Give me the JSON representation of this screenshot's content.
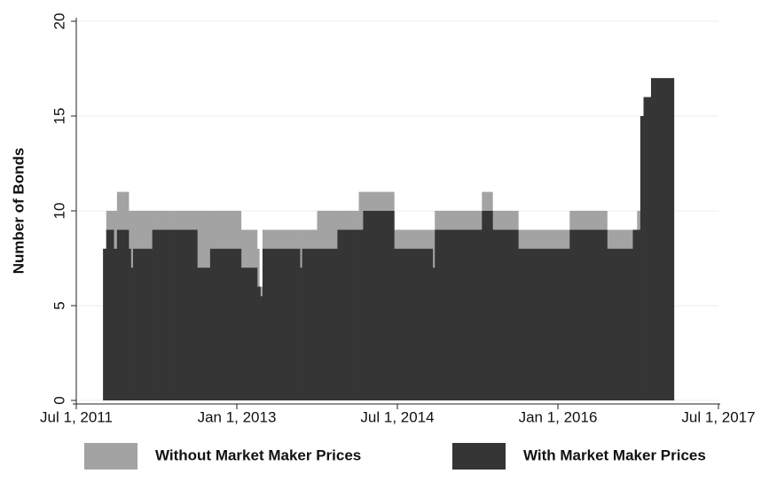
{
  "chart_data": {
    "type": "step-area",
    "y_label": "Number of Bonds",
    "x": [
      2011.75,
      2011.78,
      2011.85,
      2011.88,
      2011.99,
      2012.01,
      2012.03,
      2012.21,
      2012.4,
      2012.63,
      2012.75,
      2013.04,
      2013.19,
      2013.21,
      2013.22,
      2013.24,
      2013.59,
      2013.61,
      2013.75,
      2013.94,
      2014.14,
      2014.18,
      2014.47,
      2014.83,
      2014.85,
      2015.29,
      2015.39,
      2015.63,
      2016.11,
      2016.46,
      2016.7,
      2016.74,
      2016.77,
      2016.8,
      2016.87,
      2017.08
    ],
    "series": [
      {
        "name": "Without Market Maker Prices",
        "color": "#a3a3a3",
        "values": [
          8,
          10,
          10,
          11,
          10,
          10,
          10,
          10,
          10,
          10,
          10,
          9,
          8,
          6,
          6,
          9,
          9,
          9,
          10,
          10,
          11,
          11,
          9,
          9,
          10,
          11,
          10,
          9,
          10,
          9,
          9,
          10,
          15,
          16,
          17,
          17
        ]
      },
      {
        "name": "With Market Maker Prices",
        "color": "#353535",
        "values": [
          8,
          9,
          8,
          9,
          8,
          7,
          8,
          9,
          9,
          7,
          8,
          7,
          6,
          6,
          5.5,
          8,
          7,
          8,
          8,
          9,
          9,
          10,
          8,
          7,
          9,
          10,
          9,
          8,
          9,
          8,
          9,
          9,
          15,
          16,
          17,
          17
        ]
      }
    ],
    "xlim": [
      2011.5,
      2017.5
    ],
    "xticks": [
      {
        "value": 2011.5,
        "label": "Jul 1, 2011"
      },
      {
        "value": 2013,
        "label": "Jan 1, 2013"
      },
      {
        "value": 2014.5,
        "label": "Jul 1, 2014"
      },
      {
        "value": 2016,
        "label": "Jan 1, 2016"
      },
      {
        "value": 2017.5,
        "label": "Jul 1, 2017"
      }
    ],
    "ylim": [
      0,
      20
    ],
    "yticks": [
      0,
      5,
      10,
      15,
      20
    ],
    "grid": true,
    "legend": "bottom"
  }
}
